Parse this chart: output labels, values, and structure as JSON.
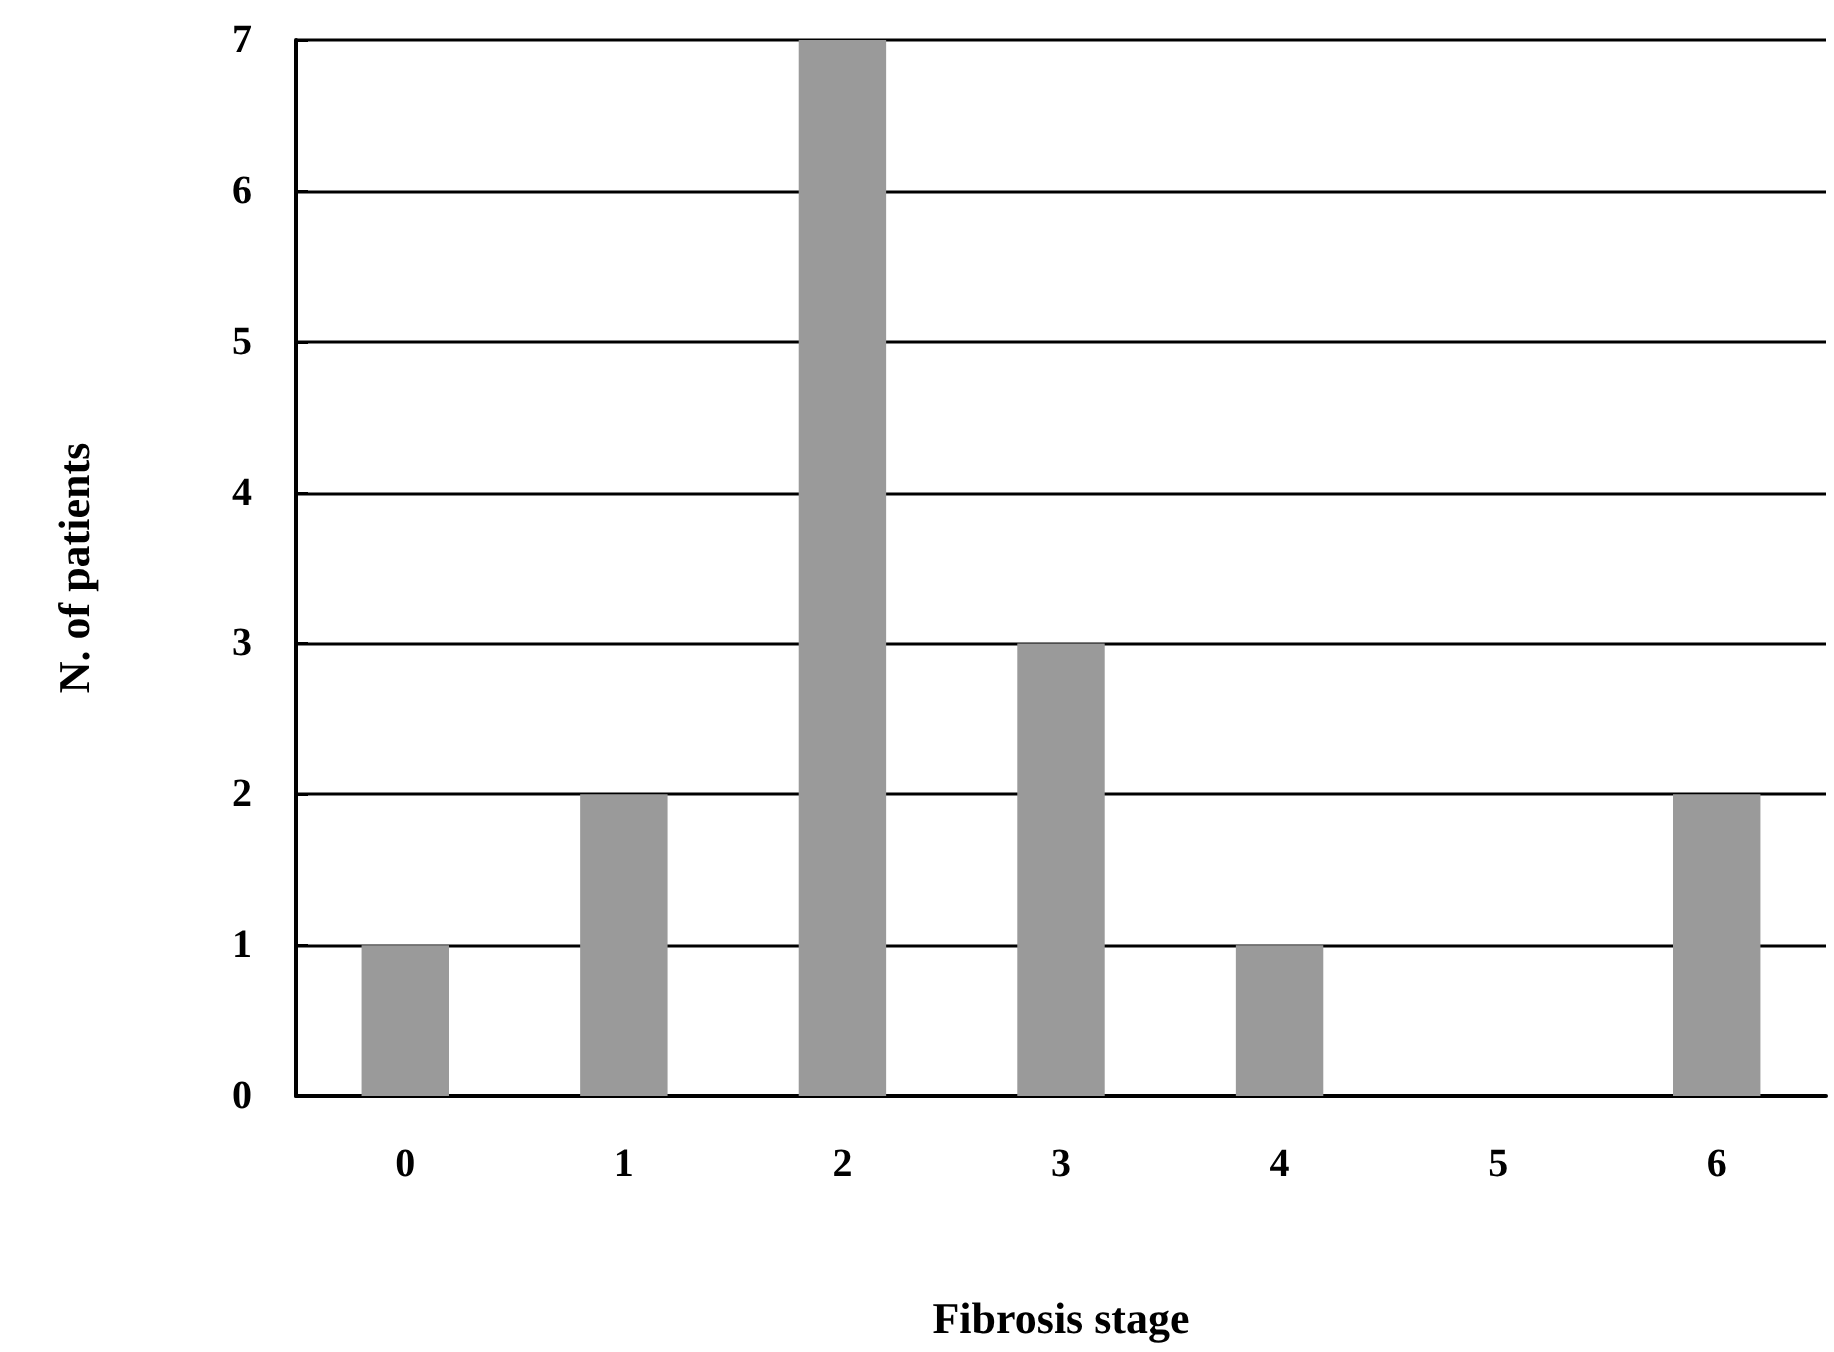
{
  "chart_data": {
    "type": "bar",
    "xlabel": "Fibrosis stage",
    "ylabel": "N. of patients",
    "categories": [
      "0",
      "1",
      "2",
      "3",
      "4",
      "5",
      "6"
    ],
    "values": [
      1,
      2,
      7,
      3,
      1,
      0,
      2
    ],
    "color": "#9a9a9a",
    "ylim": [
      0,
      7
    ],
    "yticks": [
      0,
      1,
      2,
      3,
      4,
      5,
      6,
      7
    ],
    "grid": "y"
  }
}
